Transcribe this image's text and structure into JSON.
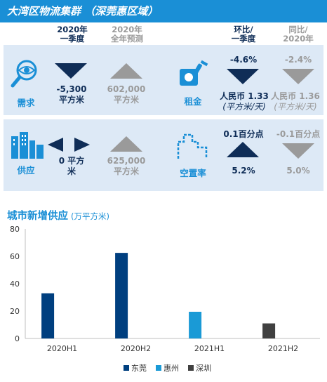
{
  "banner": {
    "title": "大湾区物流集群  （深莞惠区域）"
  },
  "headers": {
    "q1_2020": "2020年\n一季度",
    "fy_2020": "2020年\n全年预测",
    "qoq": "环比/\n一季度",
    "yoy": "同比/\n2020年"
  },
  "demand": {
    "label": "需求",
    "q1_value": "-5,300",
    "q1_unit": "平方米",
    "fy_value": "602,000",
    "fy_unit": "平方米"
  },
  "rent": {
    "label": "租金",
    "qoq_change": "-4.6%",
    "qoq_value": "人民币 1.33",
    "qoq_unit": "(平方米/天)",
    "yoy_change": "-2.4%",
    "yoy_value": "人民币 1.36",
    "yoy_unit": "(平方米/天)"
  },
  "supply": {
    "label": "供应",
    "q1_value": "0 平方",
    "q1_unit": "米",
    "fy_value": "625,000",
    "fy_unit": "平方米"
  },
  "vacancy": {
    "label": "空置率",
    "qoq_change": "0.1百分点",
    "qoq_value": "5.2%",
    "yoy_change": "-0.1百分点",
    "yoy_value": "5.0%"
  },
  "colors": {
    "dark_navy": "#0f2d57",
    "accent_blue": "#1a8fd6",
    "grey": "#9a9a9a",
    "panel_bg": "#dde9f6",
    "dongguan": "#003f7f",
    "huizhou": "#1a9ad6",
    "shenzhen": "#404040"
  },
  "chart_data": {
    "type": "bar",
    "title": "城市新增供应",
    "unit": "(万平方米)",
    "categories": [
      "2020H1",
      "2020H2",
      "2021H1",
      "2021H2"
    ],
    "series": [
      {
        "name": "东莞",
        "values": [
          33,
          62.5,
          0,
          0
        ]
      },
      {
        "name": "惠州",
        "values": [
          0,
          0,
          19.5,
          0
        ]
      },
      {
        "name": "深圳",
        "values": [
          0,
          0,
          0,
          11
        ]
      }
    ],
    "ylim": [
      0,
      80
    ],
    "yticks": [
      0,
      20,
      40,
      60,
      80
    ],
    "grid": false,
    "legend": "bottom"
  }
}
